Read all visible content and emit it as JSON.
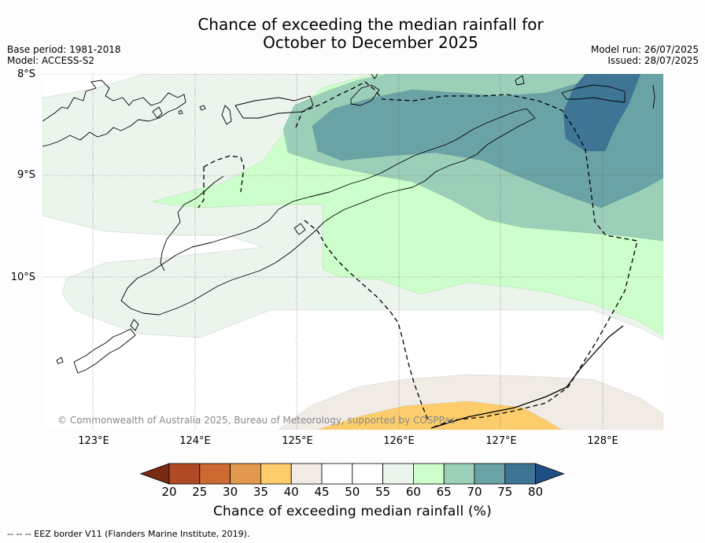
{
  "title": {
    "line1": "Chance of exceeding the median rainfall for",
    "line2": "October to December 2025"
  },
  "meta": {
    "base_period": "Base period: 1981-2018",
    "model": "Model: ACCESS-S2",
    "model_run": "Model run: 26/07/2025",
    "issued": "Issued: 28/07/2025"
  },
  "axes": {
    "lat_labels": [
      "8°S",
      "9°S",
      "10°S"
    ],
    "lon_labels": [
      "123°E",
      "124°E",
      "125°E",
      "126°E",
      "127°E",
      "128°E"
    ]
  },
  "map": {
    "extent": {
      "lon_min": 122.5,
      "lon_max": 128.6,
      "lat_max": -8.0,
      "lat_min": -11.5
    },
    "graticule": "dotted",
    "coastline": "Timor, Alor, Wetar and Babar islands",
    "overlay": "EEZ boundary (dashed)"
  },
  "copyright": "© Commonwealth of Australia 2025, Bureau of Meteorology, supported by COSPPac",
  "colorbar": {
    "ticks": [
      "20",
      "25",
      "30",
      "35",
      "40",
      "45",
      "50",
      "55",
      "60",
      "65",
      "70",
      "75",
      "80"
    ],
    "colors": [
      "#7a2a12",
      "#b04a25",
      "#cc6a32",
      "#e2994e",
      "#fdcd6b",
      "#f1ebe6",
      "#ffffff",
      "#ffffff",
      "#ecf5ec",
      "#ccffcc",
      "#9ccfb8",
      "#6aa3a6",
      "#3e7595",
      "#1f4e85"
    ],
    "label": "Chance of exceeding median rainfall (%)"
  },
  "footnote": "--  --  -- EEZ border V11 (Flanders Marine Institute, 2019)."
}
